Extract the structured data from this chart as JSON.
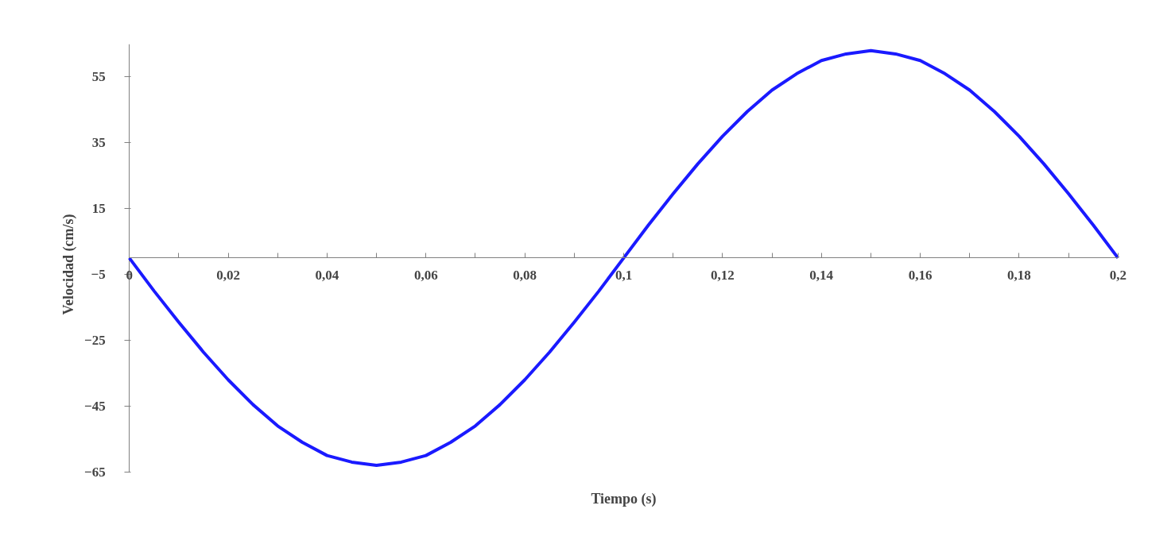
{
  "chart_data": {
    "type": "line",
    "xlabel": "Tiempo (s)",
    "ylabel": "Velocidad (cm/s)",
    "x": [
      0,
      0.005,
      0.01,
      0.015,
      0.02,
      0.025,
      0.03,
      0.035,
      0.04,
      0.045,
      0.05,
      0.055,
      0.06,
      0.065,
      0.07,
      0.075,
      0.08,
      0.085,
      0.09,
      0.095,
      0.1,
      0.105,
      0.11,
      0.115,
      0.12,
      0.125,
      0.13,
      0.135,
      0.14,
      0.145,
      0.15,
      0.155,
      0.16,
      0.165,
      0.17,
      0.175,
      0.18,
      0.185,
      0.19,
      0.195,
      0.2
    ],
    "series": [
      {
        "color": "#1a1aff",
        "values": [
          0,
          -10,
          -19.5,
          -28.6,
          -37,
          -44.5,
          -51,
          -56,
          -60,
          -62,
          -63,
          -62,
          -60,
          -56,
          -51,
          -44.5,
          -37,
          -28.6,
          -19.5,
          -10,
          0,
          10,
          19.5,
          28.6,
          37,
          44.5,
          51,
          56,
          60,
          62,
          63,
          62,
          60,
          56,
          51,
          44.5,
          37,
          28.6,
          19.5,
          10,
          0
        ]
      }
    ],
    "xlim": [
      0,
      0.2
    ],
    "ylim": [
      -65,
      65
    ],
    "xticks": [
      0,
      {
        "value": 0.01,
        "label": null
      },
      {
        "value": 0.02,
        "label": "0,02"
      },
      {
        "value": 0.03,
        "label": null
      },
      {
        "value": 0.04,
        "label": "0,04"
      },
      {
        "value": 0.05,
        "label": null
      },
      {
        "value": 0.06,
        "label": "0,06"
      },
      {
        "value": 0.07,
        "label": null
      },
      {
        "value": 0.08,
        "label": "0,08"
      },
      {
        "value": 0.09,
        "label": null
      },
      {
        "value": 0.1,
        "label": "0,1"
      },
      {
        "value": 0.11,
        "label": null
      },
      {
        "value": 0.12,
        "label": "0,12"
      },
      {
        "value": 0.13,
        "label": null
      },
      {
        "value": 0.14,
        "label": "0,14"
      },
      {
        "value": 0.15,
        "label": null
      },
      {
        "value": 0.16,
        "label": "0,16"
      },
      {
        "value": 0.17,
        "label": null
      },
      {
        "value": 0.18,
        "label": "0,18"
      },
      {
        "value": 0.19,
        "label": null
      },
      {
        "value": 0.2,
        "label": "0,2"
      }
    ],
    "yticks": [
      55,
      35,
      15,
      -5,
      -25,
      -45,
      -65
    ],
    "grid": false,
    "marker": "none",
    "line_style": "solid"
  }
}
